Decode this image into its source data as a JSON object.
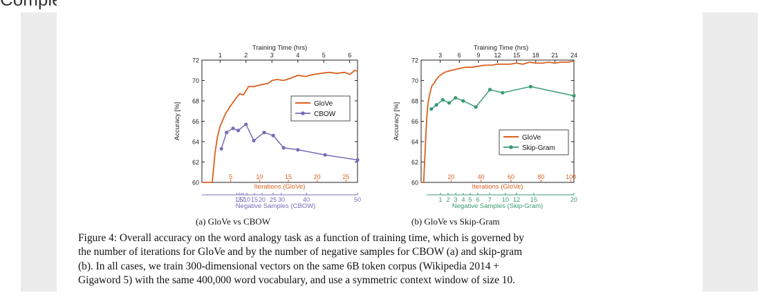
{
  "page": {
    "cut_heading": "Complexity"
  },
  "caption": {
    "lines": [
      "Figure 4: Overall accuracy on the word analogy task as a function of training time, which is governed by",
      "the number of iterations for GloVe and by the number of negative samples for CBOW (a) and skip-gram",
      "(b).  In all cases, we train 300-dimensional vectors on the same 6B token corpus (Wikipedia 2014 +",
      "Gigaword 5) with the same 400,000 word vocabulary, and use a symmetric context window of size 10."
    ]
  },
  "chart_data": [
    {
      "type": "line",
      "subcaption": "(a)  GloVe vs CBOW",
      "ylabel": "Accuracy [%]",
      "ylim": [
        60,
        72
      ],
      "yticks": [
        60,
        62,
        64,
        66,
        68,
        70,
        72
      ],
      "top_axis": {
        "label": "Training Time (hrs)",
        "lim": [
          0.3,
          6.3
        ],
        "ticks": [
          1,
          2,
          3,
          4,
          5,
          6
        ]
      },
      "iter_axis": {
        "label": "Iterations (GloVe)",
        "lim": [
          0,
          27
        ],
        "ticks": [
          5,
          10,
          15,
          20,
          25
        ]
      },
      "neg_axis": {
        "label": "Negative Samples (CBOW)",
        "ticks": [
          1,
          3,
          5,
          7,
          10,
          15,
          20,
          25,
          30,
          40,
          50
        ]
      },
      "legend": [
        "GloVe",
        "CBOW"
      ],
      "legend_position": "center-right",
      "colors": {
        "glove": "#d95f1e",
        "other": "#7a6ab8",
        "axis_glove": "#d95f1e",
        "axis_other": "#7a6ab8"
      },
      "series": [
        {
          "name": "GloVe",
          "x_hrs": [
            0.3,
            0.5,
            0.7,
            0.8,
            0.9,
            1.0,
            1.2,
            1.4,
            1.6,
            1.75,
            1.9,
            2.1,
            2.3,
            2.6,
            2.85,
            3.0,
            3.2,
            3.45,
            3.7,
            4.0,
            4.3,
            4.6,
            4.9,
            5.2,
            5.5,
            5.8,
            6.0,
            6.2,
            6.3
          ],
          "values": [
            60.0,
            60.0,
            60.0,
            62.8,
            64.5,
            65.5,
            66.7,
            67.5,
            68.2,
            68.7,
            68.6,
            69.4,
            69.4,
            69.6,
            69.7,
            70.0,
            70.1,
            70.0,
            70.2,
            70.5,
            70.4,
            70.6,
            70.7,
            70.8,
            70.7,
            70.8,
            70.6,
            71.0,
            70.9
          ]
        },
        {
          "name": "CBOW",
          "x_hrs": [
            1.05,
            1.25,
            1.5,
            1.7,
            2.0,
            2.3,
            2.7,
            3.05,
            3.45,
            4.0,
            5.05,
            6.3
          ],
          "values": [
            63.3,
            64.9,
            65.3,
            65.1,
            65.7,
            64.1,
            64.9,
            64.6,
            63.4,
            63.2,
            62.7,
            62.2
          ]
        }
      ]
    },
    {
      "type": "line",
      "subcaption": "(b)  GloVe vs Skip-Gram",
      "ylabel": "Accuracy [%]",
      "ylim": [
        60,
        72
      ],
      "yticks": [
        60,
        62,
        64,
        66,
        68,
        70,
        72
      ],
      "top_axis": {
        "label": "Training Time (hrs)",
        "lim": [
          0,
          24
        ],
        "ticks": [
          3,
          6,
          9,
          12,
          15,
          18,
          21,
          24
        ]
      },
      "iter_axis": {
        "label": "Iterations (GloVe)",
        "lim": [
          0,
          102
        ],
        "ticks": [
          20,
          40,
          60,
          80,
          100
        ]
      },
      "neg_axis": {
        "label": "Negative Samples (Skip-Gram)",
        "ticks": [
          1,
          2,
          3,
          4,
          5,
          6,
          7,
          10,
          12,
          15,
          20
        ]
      },
      "legend": [
        "GloVe",
        "Skip-Gram"
      ],
      "legend_position": "lower-right",
      "colors": {
        "glove": "#d95f1e",
        "other": "#3a9a72",
        "axis_glove": "#d95f1e",
        "axis_other": "#3a9a72"
      },
      "series": [
        {
          "name": "GloVe",
          "x_hrs": [
            0.0,
            0.4,
            0.7,
            0.9,
            1.1,
            1.4,
            1.7,
            2.0,
            2.4,
            2.8,
            3.2,
            3.7,
            4.2,
            4.8,
            5.5,
            6.2,
            7.0,
            8.0,
            9.0,
            10.0,
            11.0,
            12.0,
            13.0,
            14.0,
            15.0,
            16.0,
            17.0,
            18.0,
            19.0,
            20.0,
            21.0,
            22.0,
            23.0,
            24.0
          ],
          "values": [
            60.0,
            60.0,
            64.0,
            66.5,
            67.8,
            68.8,
            69.5,
            69.7,
            70.1,
            70.4,
            70.6,
            70.8,
            70.9,
            71.0,
            71.1,
            71.2,
            71.3,
            71.3,
            71.4,
            71.5,
            71.5,
            71.6,
            71.6,
            71.6,
            71.7,
            71.6,
            71.8,
            71.7,
            71.7,
            71.8,
            71.7,
            71.8,
            71.8,
            71.9
          ]
        },
        {
          "name": "Skip-Gram",
          "x_hrs": [
            1.6,
            2.4,
            3.4,
            4.4,
            5.4,
            6.6,
            8.6,
            10.8,
            12.8,
            17.2,
            24.0
          ],
          "values": [
            67.2,
            67.6,
            68.1,
            67.8,
            68.3,
            68.0,
            67.4,
            69.1,
            68.8,
            69.4,
            68.5
          ]
        }
      ]
    }
  ]
}
